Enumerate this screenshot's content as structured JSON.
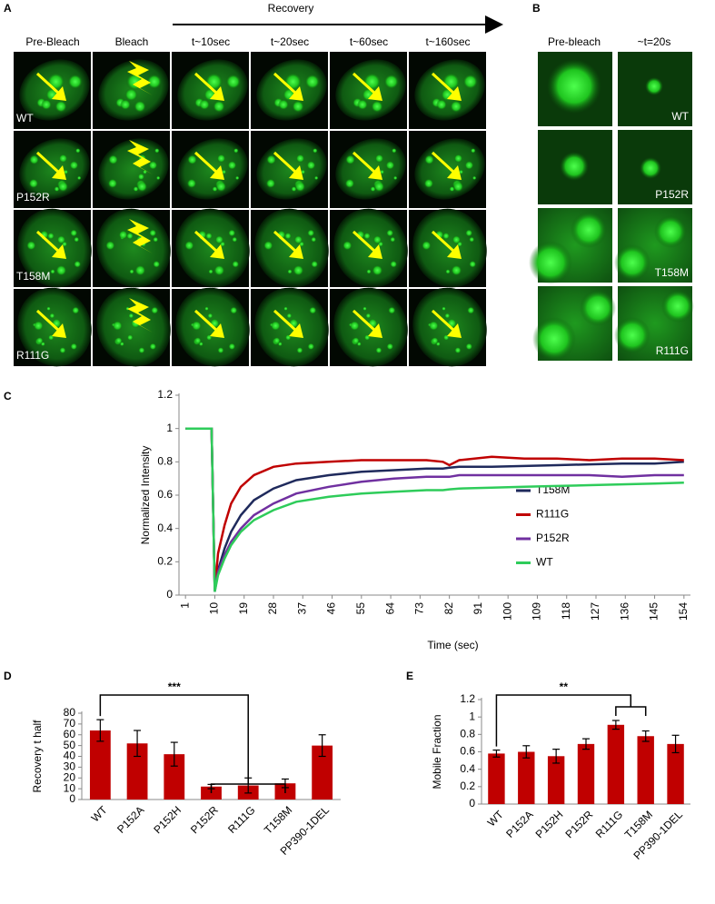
{
  "figure": {
    "panel_a": {
      "label": "A",
      "recovery": "Recovery",
      "columns": [
        "Pre-Bleach",
        "Bleach",
        "t~10sec",
        "t~20sec",
        "t~60sec",
        "t~160sec"
      ],
      "rows": [
        "WT",
        "P152R",
        "T158M",
        "R111G"
      ]
    },
    "panel_b": {
      "label": "B",
      "columns": [
        "Pre-bleach",
        "~t=20s"
      ],
      "rows": [
        "WT",
        "P152R",
        "T158M",
        "R111G"
      ]
    }
  },
  "chart_data": [
    {
      "panel": "C",
      "type": "line",
      "x_label": "Time (sec)",
      "y_label": "Normalized Intensity",
      "x": [
        1,
        5,
        9,
        10,
        11,
        13,
        15,
        18,
        22,
        28,
        35,
        45,
        55,
        65,
        75,
        80,
        82,
        85,
        95,
        105,
        115,
        125,
        135,
        145,
        154
      ],
      "xlim": [
        -1,
        156
      ],
      "xticks": [
        1,
        10,
        19,
        28,
        37,
        46,
        55,
        64,
        73,
        82,
        91,
        100,
        109,
        118,
        127,
        136,
        145,
        154
      ],
      "ylim": [
        0,
        1.2
      ],
      "yticks": [
        0,
        0.2,
        0.4,
        0.6,
        0.8,
        1,
        1.2
      ],
      "legend": "right",
      "series": [
        {
          "name": "T158M",
          "color": "#1f2a5c",
          "values": [
            1,
            1,
            1,
            0.03,
            0.15,
            0.28,
            0.38,
            0.48,
            0.57,
            0.64,
            0.69,
            0.72,
            0.74,
            0.75,
            0.76,
            0.76,
            0.765,
            0.77,
            0.77,
            0.775,
            0.78,
            0.785,
            0.79,
            0.79,
            0.8
          ]
        },
        {
          "name": "R111G",
          "color": "#c00000",
          "values": [
            1,
            1,
            1,
            0.03,
            0.25,
            0.42,
            0.55,
            0.65,
            0.72,
            0.77,
            0.79,
            0.8,
            0.81,
            0.81,
            0.81,
            0.8,
            0.78,
            0.81,
            0.83,
            0.82,
            0.82,
            0.81,
            0.82,
            0.82,
            0.81
          ]
        },
        {
          "name": "P152R",
          "color": "#7030a0",
          "values": [
            1,
            1,
            1,
            0.02,
            0.14,
            0.24,
            0.32,
            0.4,
            0.48,
            0.55,
            0.61,
            0.65,
            0.68,
            0.7,
            0.71,
            0.71,
            0.71,
            0.72,
            0.72,
            0.72,
            0.72,
            0.72,
            0.71,
            0.72,
            0.72
          ]
        },
        {
          "name": "WT",
          "color": "#2ecc5a",
          "values": [
            1,
            1,
            1,
            0.02,
            0.12,
            0.22,
            0.3,
            0.38,
            0.45,
            0.51,
            0.56,
            0.59,
            0.61,
            0.62,
            0.63,
            0.63,
            0.635,
            0.64,
            0.645,
            0.65,
            0.655,
            0.66,
            0.665,
            0.67,
            0.675
          ]
        }
      ]
    },
    {
      "panel": "D",
      "type": "bar",
      "y_label": "Recovery t half",
      "categories": [
        "WT",
        "P152A",
        "P152H",
        "P152R",
        "R111G",
        "T158M",
        "PP390-1DEL"
      ],
      "values": [
        64,
        52,
        42,
        12,
        13,
        15,
        50
      ],
      "errors": [
        10,
        12,
        11,
        2,
        7,
        4,
        10
      ],
      "color": "#c00000",
      "ylim": [
        0,
        80
      ],
      "yticks": [
        0,
        10,
        20,
        30,
        40,
        50,
        60,
        70,
        80
      ],
      "annotations": [
        "***"
      ]
    },
    {
      "panel": "E",
      "type": "bar",
      "y_label": "Mobile Fraction",
      "categories": [
        "WT",
        "P152A",
        "P152H",
        "P152R",
        "R111G",
        "T158M",
        "PP390-1DEL"
      ],
      "values": [
        0.58,
        0.6,
        0.55,
        0.69,
        0.91,
        0.78,
        0.69
      ],
      "errors": [
        0.04,
        0.07,
        0.08,
        0.06,
        0.05,
        0.06,
        0.1
      ],
      "color": "#c00000",
      "ylim": [
        0,
        1.2
      ],
      "yticks": [
        0,
        0.2,
        0.4,
        0.6,
        0.8,
        1,
        1.2
      ],
      "annotations": [
        "**"
      ]
    }
  ]
}
